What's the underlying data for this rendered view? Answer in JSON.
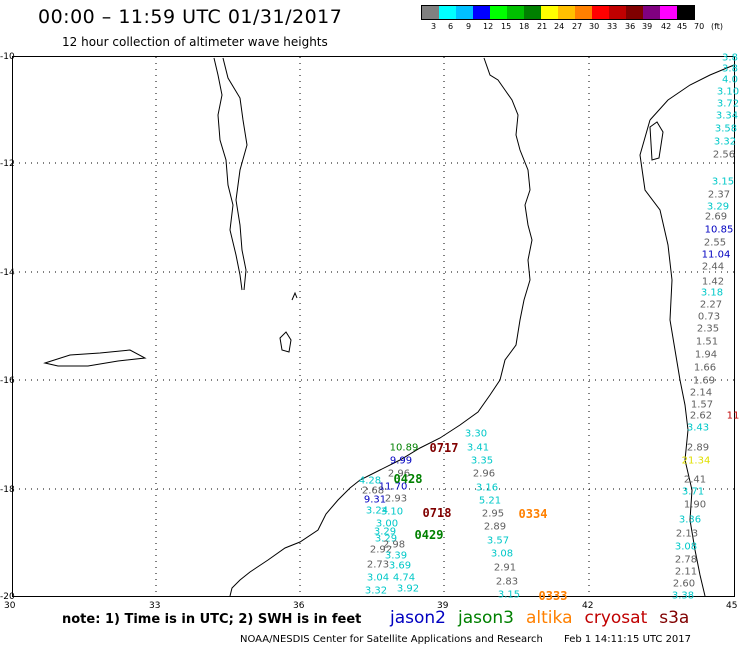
{
  "header": {
    "title": "00:00 – 11:59 UTC 01/31/2017",
    "subtitle": "12 hour collection of altimeter wave heights"
  },
  "legend": {
    "colors": [
      "#808080",
      "#00ffff",
      "#00c0ff",
      "#0000ff",
      "#00ff00",
      "#00c000",
      "#008000",
      "#ffff00",
      "#ffc000",
      "#ff8000",
      "#ff0000",
      "#c00000",
      "#800000",
      "#800080",
      "#ff00ff",
      "#000000"
    ],
    "labels": [
      "3",
      "6",
      "9",
      "12",
      "15",
      "18",
      "21",
      "24",
      "27",
      "30",
      "33",
      "36",
      "39",
      "42",
      "45",
      "70",
      "(ft)"
    ]
  },
  "axes": {
    "lat_ticks": [
      "-10",
      "-12",
      "-14",
      "-16",
      "-18",
      "-20"
    ],
    "lon_ticks": [
      "30",
      "33",
      "36",
      "39",
      "42",
      "45"
    ]
  },
  "observations": [
    {
      "text": "3.8",
      "color": "#00c8c8"
    },
    {
      "text": "3.8",
      "color": "#00c8c8"
    },
    {
      "text": "4.0",
      "color": "#00c8c8"
    },
    {
      "text": "3.10",
      "color": "#00c8c8"
    },
    {
      "text": "3.72",
      "color": "#00c8c8"
    },
    {
      "text": "3.34",
      "color": "#00c8c8"
    },
    {
      "text": "3.58",
      "color": "#00c8c8"
    },
    {
      "text": "3.32",
      "color": "#00c8c8"
    },
    {
      "text": "2.56",
      "color": "#606060"
    },
    {
      "text": "3.15",
      "color": "#00c8c8"
    },
    {
      "text": "2.37",
      "color": "#606060"
    },
    {
      "text": "3.29",
      "color": "#00c8c8"
    },
    {
      "text": "2.69",
      "color": "#606060"
    },
    {
      "text": "10.85",
      "color": "#0000c0"
    },
    {
      "text": "2.55",
      "color": "#606060"
    },
    {
      "text": "11.04",
      "color": "#0000c0"
    },
    {
      "text": "2.44",
      "color": "#606060"
    },
    {
      "text": "1.42",
      "color": "#606060"
    },
    {
      "text": "3.18",
      "color": "#00c8c8"
    },
    {
      "text": "2.27",
      "color": "#606060"
    },
    {
      "text": "0.73",
      "color": "#606060"
    },
    {
      "text": "2.35",
      "color": "#606060"
    },
    {
      "text": "1.51",
      "color": "#606060"
    },
    {
      "text": "1.94",
      "color": "#606060"
    },
    {
      "text": "1.66",
      "color": "#606060"
    },
    {
      "text": "1.69",
      "color": "#606060"
    },
    {
      "text": "2.14",
      "color": "#606060"
    },
    {
      "text": "1.57",
      "color": "#606060"
    },
    {
      "text": "2.62",
      "color": "#606060"
    },
    {
      "text": "11",
      "color": "#c00000"
    },
    {
      "text": "3.43",
      "color": "#00c8c8"
    },
    {
      "text": "2.89",
      "color": "#606060"
    },
    {
      "text": "21.34",
      "color": "#e0e000"
    },
    {
      "text": "2.41",
      "color": "#606060"
    },
    {
      "text": "3.71",
      "color": "#00c8c8"
    },
    {
      "text": "1.90",
      "color": "#606060"
    },
    {
      "text": "3.36",
      "color": "#00c8c8"
    },
    {
      "text": "2.13",
      "color": "#606060"
    },
    {
      "text": "3.08",
      "color": "#00c8c8"
    },
    {
      "text": "2.78",
      "color": "#606060"
    },
    {
      "text": "2.11",
      "color": "#606060"
    },
    {
      "text": "2.60",
      "color": "#606060"
    },
    {
      "text": "3.38",
      "color": "#00c8c8"
    },
    {
      "text": "3.30",
      "color": "#00c8c8"
    },
    {
      "text": "3.41",
      "color": "#00c8c8"
    },
    {
      "text": "3.35",
      "color": "#00c8c8"
    },
    {
      "text": "2.96",
      "color": "#606060"
    },
    {
      "text": "3.16",
      "color": "#00c8c8"
    },
    {
      "text": "5.21",
      "color": "#00c8c8"
    },
    {
      "text": "2.95",
      "color": "#606060"
    },
    {
      "text": "2.89",
      "color": "#606060"
    },
    {
      "text": "3.57",
      "color": "#00c8c8"
    },
    {
      "text": "3.08",
      "color": "#00c8c8"
    },
    {
      "text": "2.91",
      "color": "#606060"
    },
    {
      "text": "2.83",
      "color": "#606060"
    },
    {
      "text": "3.15",
      "color": "#00c8c8"
    },
    {
      "text": "10.89",
      "color": "#008000"
    },
    {
      "text": "9.99",
      "color": "#0000c0"
    },
    {
      "text": "2.96",
      "color": "#606060"
    },
    {
      "text": "4.28",
      "color": "#00c8c8"
    },
    {
      "text": "2.68",
      "color": "#606060"
    },
    {
      "text": "11.70",
      "color": "#0000c0"
    },
    {
      "text": "9.31",
      "color": "#0000c0"
    },
    {
      "text": "2.93",
      "color": "#606060"
    },
    {
      "text": "3.24",
      "color": "#00c8c8"
    },
    {
      "text": "3.10",
      "color": "#00c8c8"
    },
    {
      "text": "3.00",
      "color": "#00c8c8"
    },
    {
      "text": "3.29",
      "color": "#00c8c8"
    },
    {
      "text": "3.29",
      "color": "#00c8c8"
    },
    {
      "text": "2.98",
      "color": "#606060"
    },
    {
      "text": "2.92",
      "color": "#606060"
    },
    {
      "text": "3.39",
      "color": "#00c8c8"
    },
    {
      "text": "2.73",
      "color": "#606060"
    },
    {
      "text": "3.69",
      "color": "#00c8c8"
    },
    {
      "text": "3.04",
      "color": "#00c8c8"
    },
    {
      "text": "4.74",
      "color": "#00c8c8"
    },
    {
      "text": "3.32",
      "color": "#00c8c8"
    },
    {
      "text": "3.92",
      "color": "#00c8c8"
    }
  ],
  "passes": [
    {
      "text": "0717",
      "color": "#800000"
    },
    {
      "text": "0428",
      "color": "#008000"
    },
    {
      "text": "0718",
      "color": "#800000"
    },
    {
      "text": "0334",
      "color": "#ff8000"
    },
    {
      "text": "0429",
      "color": "#008000"
    },
    {
      "text": "0333",
      "color": "#ff8000"
    }
  ],
  "footer": {
    "note": "note: 1) Time is in UTC; 2) SWH is in feet",
    "satellites": [
      {
        "name": "jason2",
        "color": "#0000c0"
      },
      {
        "name": "jason3",
        "color": "#008000"
      },
      {
        "name": "altika",
        "color": "#ff8000"
      },
      {
        "name": "cryosat",
        "color": "#c00000"
      },
      {
        "name": "s3a",
        "color": "#800000"
      }
    ],
    "credit": "NOAA/NESDIS Center for Satellite Applications and Research",
    "timestamp": "Feb  1 14:11:15 UTC 2017"
  }
}
